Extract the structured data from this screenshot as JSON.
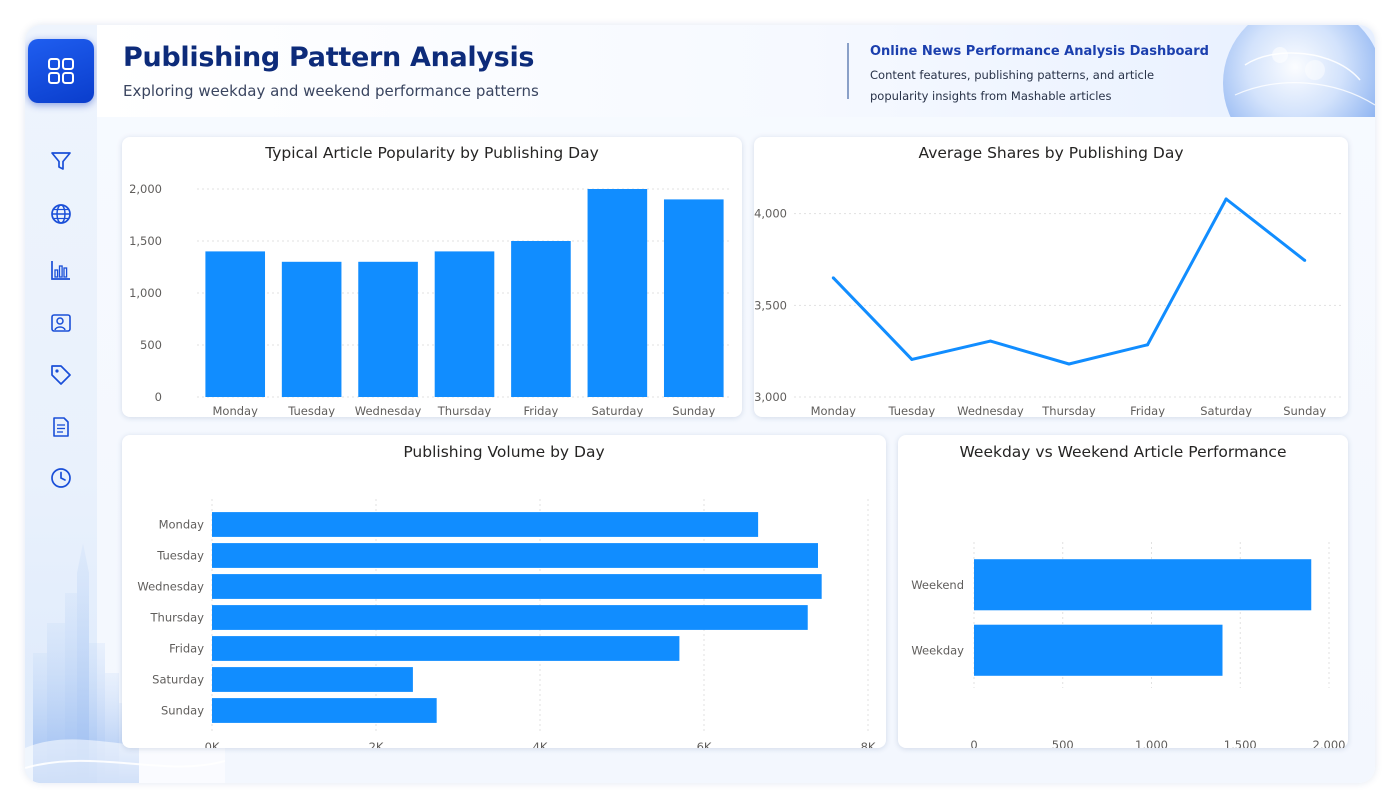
{
  "header": {
    "title": "Publishing Pattern Analysis",
    "subtitle": "Exploring weekday and weekend performance patterns",
    "dashboard_title": "Online News Performance Analysis Dashboard",
    "dashboard_description": "Content features, publishing patterns, and article popularity insights from Mashable articles"
  },
  "sidebar": {
    "items": [
      {
        "icon": "grid-icon",
        "active": true
      },
      {
        "icon": "filter-icon"
      },
      {
        "icon": "globe-icon"
      },
      {
        "icon": "bar-chart-icon"
      },
      {
        "icon": "user-card-icon"
      },
      {
        "icon": "tag-icon"
      },
      {
        "icon": "document-icon"
      },
      {
        "icon": "clock-icon"
      }
    ]
  },
  "colors": {
    "accent": "#118dff",
    "title": "#0d2b7a",
    "home_button": "#1148e0"
  },
  "chart_data": [
    {
      "id": "popularity",
      "type": "bar",
      "title": "Typical Article Popularity by Publishing Day",
      "categories": [
        "Monday",
        "Tuesday",
        "Wednesday",
        "Thursday",
        "Friday",
        "Saturday",
        "Sunday"
      ],
      "values": [
        1400,
        1300,
        1300,
        1400,
        1500,
        2000,
        1900
      ],
      "ylim": [
        0,
        2000
      ],
      "yticks": [
        "0",
        "500",
        "1,000",
        "1,500",
        "2,000"
      ],
      "grid": true
    },
    {
      "id": "avg_shares",
      "type": "line",
      "title": "Average Shares by Publishing Day",
      "categories": [
        "Monday",
        "Tuesday",
        "Wednesday",
        "Thursday",
        "Friday",
        "Saturday",
        "Sunday"
      ],
      "values": [
        3650,
        3205,
        3305,
        3180,
        3285,
        4080,
        3745
      ],
      "ylim": [
        3000,
        4200
      ],
      "yticks": [
        "3,000",
        "3,500",
        "4,000"
      ],
      "grid": true
    },
    {
      "id": "volume",
      "type": "bar",
      "orientation": "horizontal",
      "title": "Publishing Volume by Day",
      "categories": [
        "Monday",
        "Tuesday",
        "Wednesday",
        "Thursday",
        "Friday",
        "Saturday",
        "Sunday"
      ],
      "values": [
        6660,
        7390,
        7435,
        7265,
        5700,
        2450,
        2740
      ],
      "xlim": [
        0,
        8000
      ],
      "xticks": [
        "0K",
        "2K",
        "4K",
        "6K",
        "8K"
      ],
      "grid": true
    },
    {
      "id": "weekday_weekend",
      "type": "bar",
      "orientation": "horizontal",
      "title": "Weekday vs Weekend Article Performance",
      "categories": [
        "Weekend",
        "Weekday"
      ],
      "values": [
        1900,
        1400
      ],
      "xlim": [
        0,
        2000
      ],
      "xticks": [
        "0",
        "500",
        "1,000",
        "1,500",
        "2,000"
      ],
      "grid": true
    }
  ]
}
